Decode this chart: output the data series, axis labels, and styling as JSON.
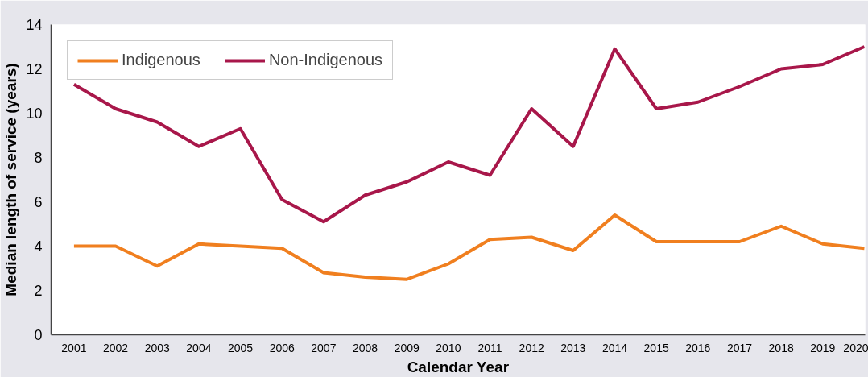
{
  "chart_data": {
    "type": "line",
    "xlabel": "Calendar Year",
    "ylabel": "Median length of service (years)",
    "categories": [
      "2001",
      "2002",
      "2003",
      "2004",
      "2005",
      "2006",
      "2007",
      "2008",
      "2009",
      "2010",
      "2011",
      "2012",
      "2013",
      "2014",
      "2015",
      "2016",
      "2017",
      "2018",
      "2019",
      "2020"
    ],
    "series": [
      {
        "name": "Indigenous",
        "color": "#f07f1f",
        "values": [
          4.0,
          4.0,
          3.1,
          4.1,
          4.0,
          3.9,
          2.8,
          2.6,
          2.5,
          3.2,
          4.3,
          4.4,
          3.8,
          5.4,
          4.2,
          4.2,
          4.2,
          4.9,
          4.1,
          3.9
        ]
      },
      {
        "name": "Non-Indigenous",
        "color": "#a8174a",
        "values": [
          11.3,
          10.2,
          9.6,
          8.5,
          9.3,
          6.1,
          5.1,
          6.3,
          6.9,
          7.8,
          7.2,
          10.2,
          8.5,
          12.9,
          10.2,
          10.5,
          11.2,
          12.0,
          12.2,
          13.0
        ]
      }
    ],
    "ylim": [
      0,
      14
    ],
    "yticks": [
      0,
      2,
      4,
      6,
      8,
      10,
      12,
      14
    ],
    "grid": false,
    "legend": "top left",
    "marker": "none",
    "line_style": "solid"
  }
}
